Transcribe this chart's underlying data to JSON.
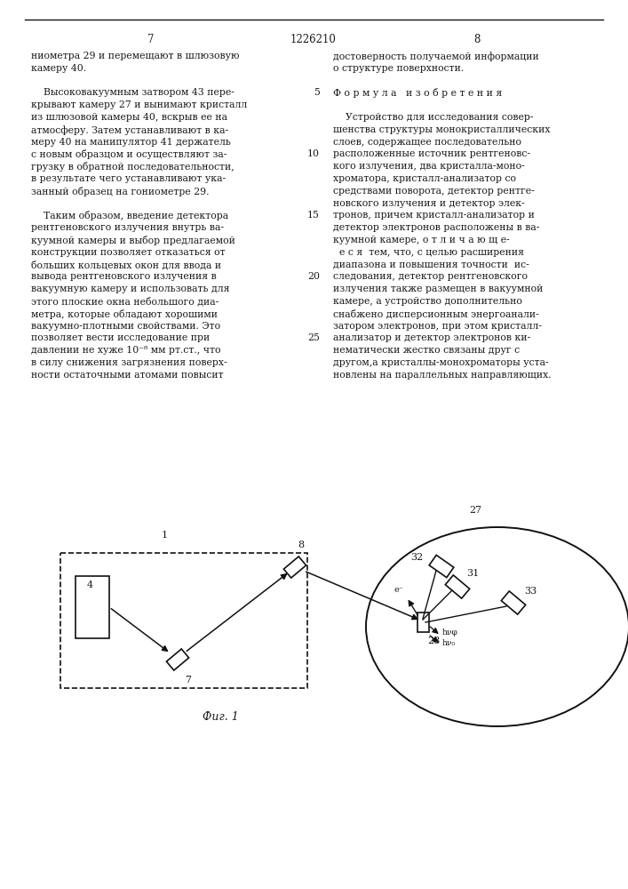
{
  "bg_color": "#ffffff",
  "text_color": "#1a1a1a",
  "page_num_left": "7",
  "patent_num": "1226210",
  "page_num_right": "8",
  "left_col": [
    "ниометра 29 и перемещают в шлюзовую",
    "камеру 40.",
    "",
    "    Высоковакуумным затвором 43 пере-",
    "крывают камеру 27 и вынимают кристалл",
    "из шлюзовой камеры 40, вскрыв ее на",
    "атмосферу. Затем устанавливают в ка-",
    "меру 40 на манипулятор 41 держатель",
    "с новым образцом и осуществляют за-",
    "грузку в обратной последовательности,",
    "в результате чего устанавливают ука-",
    "занный образец на гониометре 29.",
    "",
    "    Таким образом, введение детектора",
    "рентгеновского излучения внутрь ва-",
    "куумной камеры и выбор предлагаемой",
    "конструкции позволяет отказаться от",
    "больших кольцевых окон для ввода и",
    "вывода рентгеновского излучения в",
    "вакуумную камеру и использовать для",
    "этого плоские окна небольшого диа-",
    "метра, которые обладают хорошими",
    "вакуумно-плотными свойствами. Это",
    "позволяет вести исследование при",
    "давлении не хуже 10⁻⁸ мм рт.ст., что",
    "в силу снижения загрязнения поверх-",
    "ности остаточными атомами повысит"
  ],
  "right_col": [
    "достоверность получаемой информации",
    "о структуре поверхности.",
    "",
    "Ф о р м у л а   и з о б р е т е н и я",
    "",
    "    Устройство для исследования совер-",
    "шенства структуры монокристаллических",
    "слоев, содержащее последовательно",
    "расположенные источник рентгеновс-",
    "кого излучения, два кристалла-моно-",
    "хроматора, кристалл-анализатор со",
    "средствами поворота, детектор рентге-",
    "новского излучения и детектор элек-",
    "тронов, причем кристалл-анализатор и",
    "детектор электронов расположены в ва-",
    "куумной камере, о т л и ч а ю щ е-",
    "  е с я  тем, что, с целью расширения",
    "диапазона и повышения точности  ис-",
    "следования, детектор рентгеновского",
    "излучения также размещен в вакуумной",
    "камере, а устройство дополнительно",
    "снабжено дисперсионным энергоанали-",
    "затором электронов, при этом кристалл-",
    "анализатор и детектор электронов ки-",
    "нематически жестко связаны друг с",
    "другом,а кристаллы-монохроматоры уста-",
    "новлены на параллельных направляющих."
  ],
  "line_num_rows": [
    3,
    8,
    13,
    18,
    23
  ],
  "line_nums": [
    "5",
    "10",
    "15",
    "20",
    "25"
  ],
  "fig_caption": "Фиг. 1"
}
